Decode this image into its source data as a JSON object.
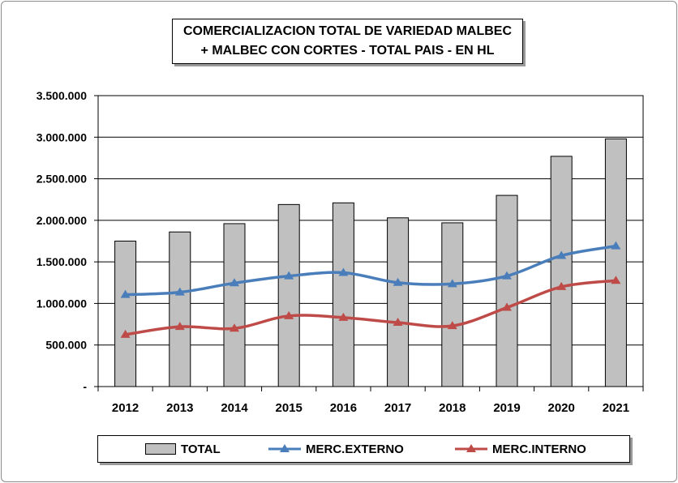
{
  "chart_data": {
    "type": "bar",
    "title_line1": "COMERCIALIZACION TOTAL DE VARIEDAD MALBEC",
    "title_line2": "+ MALBEC CON CORTES - TOTAL PAIS - EN HL",
    "categories": [
      "2012",
      "2013",
      "2014",
      "2015",
      "2016",
      "2017",
      "2018",
      "2019",
      "2020",
      "2021"
    ],
    "series": [
      {
        "name": "TOTAL",
        "kind": "bar",
        "color": "#c0c0c0",
        "values": [
          1750000,
          1860000,
          1960000,
          2190000,
          2210000,
          2030000,
          1970000,
          2300000,
          2770000,
          2980000
        ]
      },
      {
        "name": "MERC.EXTERNO",
        "kind": "line",
        "color": "#4a7ebb",
        "values": [
          1105000,
          1135000,
          1245000,
          1330000,
          1370000,
          1250000,
          1235000,
          1330000,
          1575000,
          1690000
        ]
      },
      {
        "name": "MERC.INTERNO",
        "kind": "line",
        "color": "#be4b48",
        "values": [
          625000,
          720000,
          700000,
          850000,
          830000,
          770000,
          730000,
          950000,
          1200000,
          1275000
        ]
      }
    ],
    "ylim": [
      0,
      3500000
    ],
    "yticks": [
      {
        "value": 0,
        "label": "-"
      },
      {
        "value": 500000,
        "label": "500.000"
      },
      {
        "value": 1000000,
        "label": "1.000.000"
      },
      {
        "value": 1500000,
        "label": "1.500.000"
      },
      {
        "value": 2000000,
        "label": "2.000.000"
      },
      {
        "value": 2500000,
        "label": "2.500.000"
      },
      {
        "value": 3000000,
        "label": "3.000.000"
      },
      {
        "value": 3500000,
        "label": "3.500.000"
      }
    ],
    "grid": true,
    "legend_position": "bottom"
  }
}
